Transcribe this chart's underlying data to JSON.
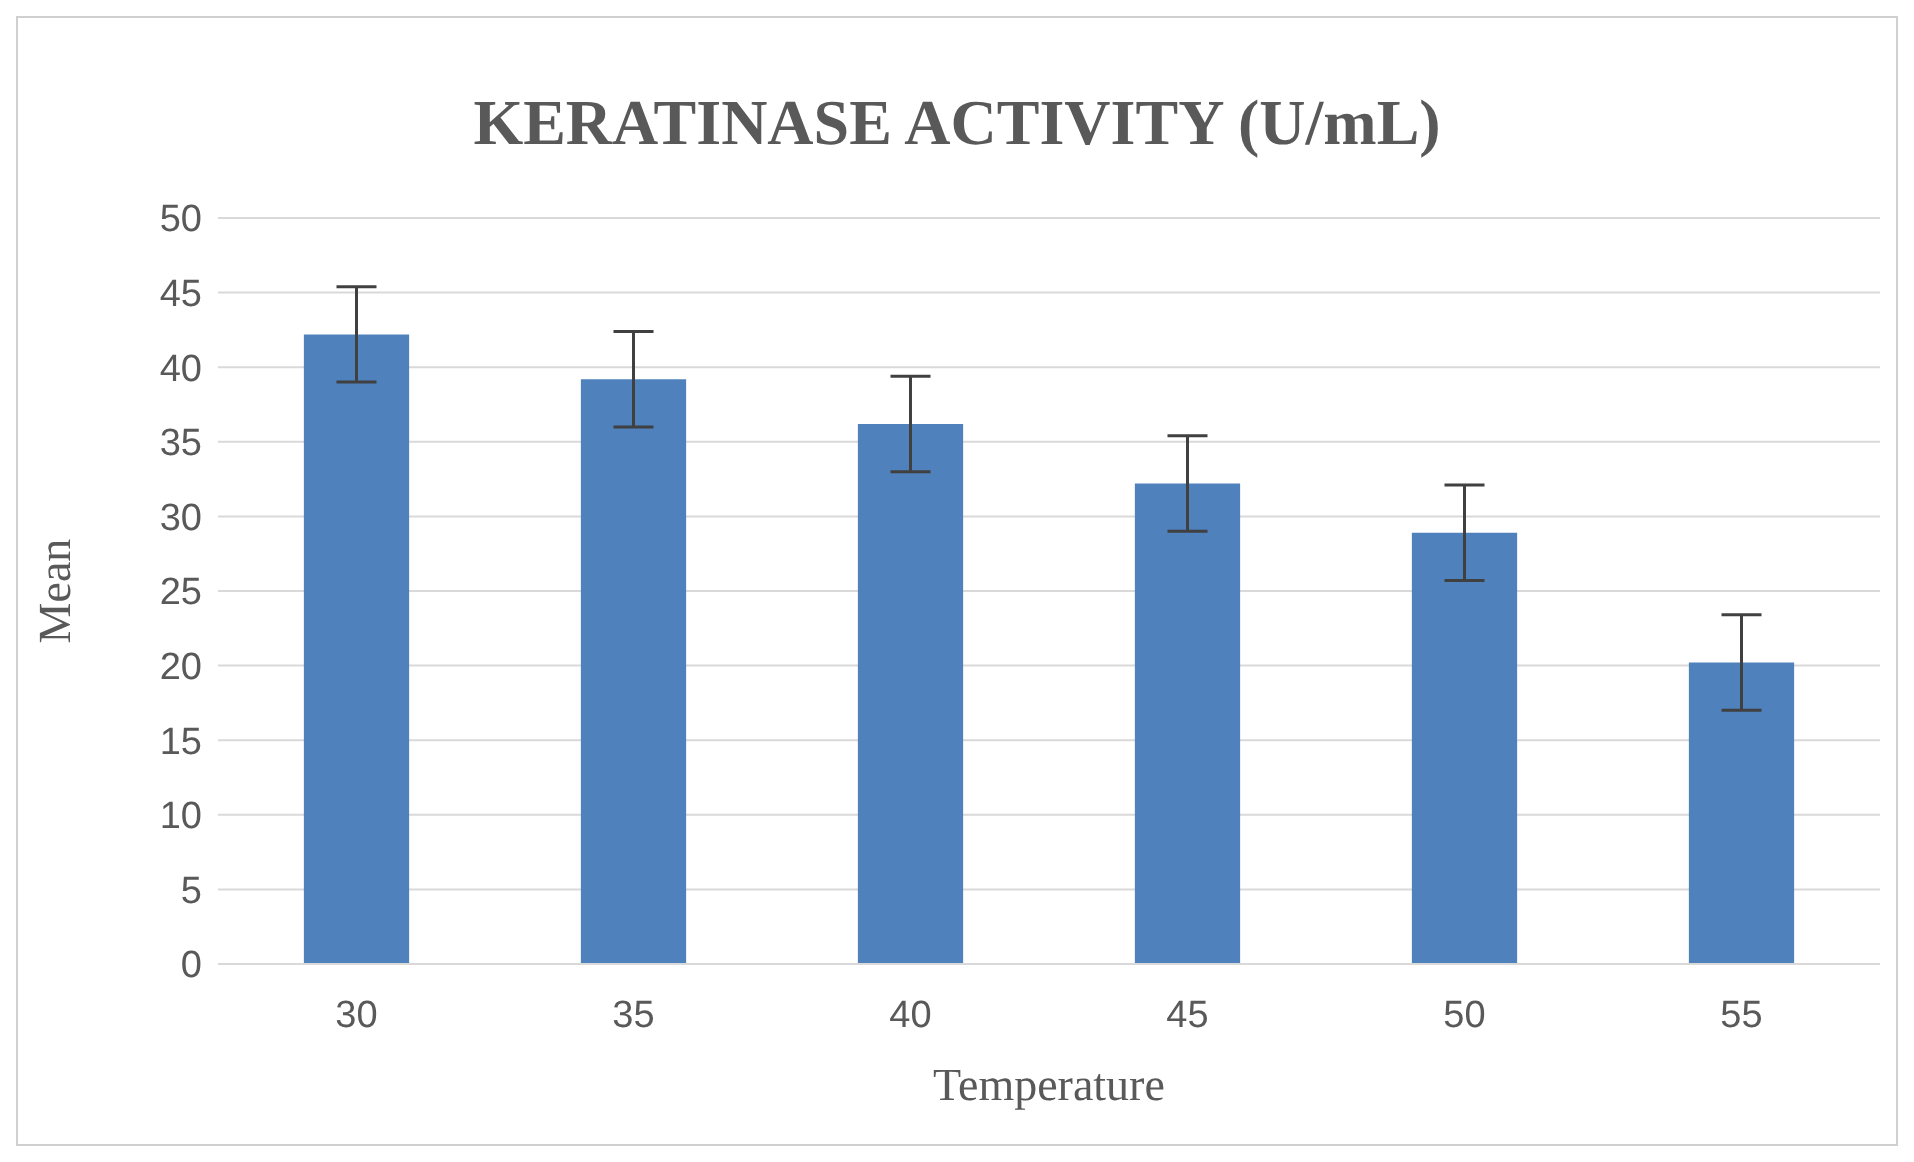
{
  "chart_data": {
    "type": "bar",
    "title": "KERATINASE ACTIVITY (U/mL)",
    "xlabel": "Temperature",
    "ylabel": "Mean",
    "categories": [
      "30",
      "35",
      "40",
      "45",
      "50",
      "55"
    ],
    "values": [
      42.2,
      39.2,
      36.2,
      32.2,
      28.9,
      20.2
    ],
    "errors": [
      3.2,
      3.2,
      3.2,
      3.2,
      3.2,
      3.2
    ],
    "color": "#4f81bd",
    "ylim": [
      0,
      50
    ],
    "yticks": [
      0,
      5,
      10,
      15,
      20,
      25,
      30,
      35,
      40,
      45,
      50
    ],
    "grid": "y",
    "legend": false
  }
}
